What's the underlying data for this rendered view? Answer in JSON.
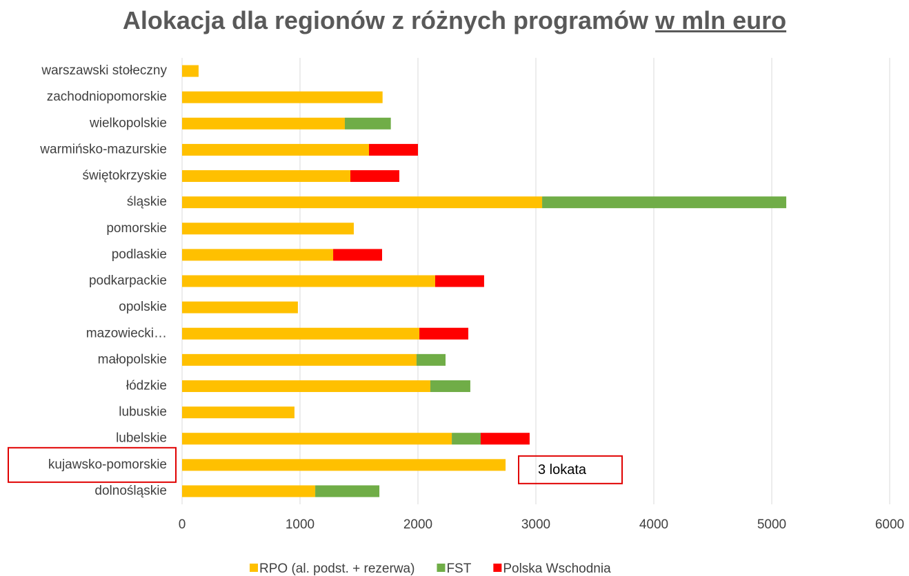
{
  "chart_data": {
    "type": "stacked_barh",
    "title": "Alokacja dla regionów z różnych programów",
    "title_unit": "w mln euro",
    "categories": [
      "dolnośląskie",
      "kujawsko-pomorskie",
      "lubelskie",
      "lubuskie",
      "łódzkie",
      "małopolskie",
      "mazowiecki…",
      "opolskie",
      "podkarpackie",
      "podlaskie",
      "pomorskie",
      "śląskie",
      "świętokrzyskie",
      "warmińsko-mazurskie",
      "wielkopolskie",
      "zachodniopomorskie",
      "warszawski stołeczny"
    ],
    "series": [
      {
        "name": "RPO (al. podst. + rezerwa)",
        "color": "#ffc000",
        "values": [
          1129,
          2743,
          2287,
          953,
          2105,
          1988,
          2012,
          982,
          2146,
          1281,
          1456,
          3053,
          1427,
          1585,
          1380,
          1700,
          140
        ]
      },
      {
        "name": "FST",
        "color": "#70ad47",
        "values": [
          544,
          null,
          245,
          null,
          339,
          246,
          null,
          null,
          null,
          null,
          null,
          2070,
          null,
          null,
          390,
          null,
          null
        ]
      },
      {
        "name": "Polska Wschodnia",
        "color": "#ff0000",
        "values": [
          null,
          null,
          415,
          null,
          null,
          null,
          415,
          null,
          415,
          415,
          null,
          null,
          415,
          415,
          null,
          null,
          null
        ]
      }
    ],
    "xlim": [
      0,
      6000
    ],
    "xticks": [
      0,
      1000,
      2000,
      3000,
      4000,
      5000,
      6000
    ],
    "grid": true,
    "annotations": [
      "3 lokata"
    ]
  }
}
